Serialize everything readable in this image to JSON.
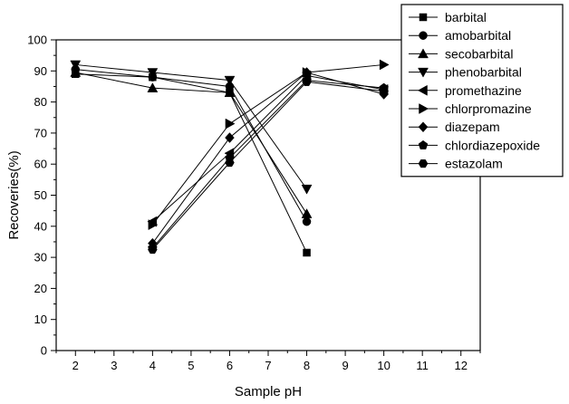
{
  "chart_data": {
    "type": "line",
    "title": "",
    "xlabel": "Sample pH",
    "ylabel": "Recoveries(%)",
    "xlim": [
      1.5,
      12.5
    ],
    "ylim": [
      0,
      100
    ],
    "xticks": [
      2,
      3,
      4,
      5,
      6,
      7,
      8,
      9,
      10,
      11,
      12
    ],
    "yticks": [
      0,
      10,
      20,
      30,
      40,
      50,
      60,
      70,
      80,
      90,
      100
    ],
    "grid": false,
    "legend_position": "top-right, outside plot",
    "series": [
      {
        "name": "barbital",
        "marker": "square",
        "x": [
          2,
          4,
          6,
          8
        ],
        "y": [
          89,
          88,
          83,
          31.5
        ]
      },
      {
        "name": "amobarbital",
        "marker": "circle",
        "x": [
          2,
          4,
          6,
          8
        ],
        "y": [
          90.5,
          88,
          85,
          41.5
        ]
      },
      {
        "name": "secobarbital",
        "marker": "triangle-up",
        "x": [
          2,
          4,
          6,
          8
        ],
        "y": [
          89.5,
          84.5,
          83,
          44
        ]
      },
      {
        "name": "phenobarbital",
        "marker": "triangle-down",
        "x": [
          2,
          4,
          6,
          8
        ],
        "y": [
          92,
          89.5,
          87,
          52
        ]
      },
      {
        "name": "promethazine",
        "marker": "triangle-left",
        "x": [
          4,
          6,
          8,
          10
        ],
        "y": [
          41.5,
          63.5,
          88.5,
          84
        ]
      },
      {
        "name": "chlorpromazine",
        "marker": "triangle-right",
        "x": [
          4,
          6,
          8,
          10
        ],
        "y": [
          40.5,
          73,
          89.5,
          92
        ]
      },
      {
        "name": "diazepam",
        "marker": "diamond",
        "x": [
          4,
          6,
          8,
          10
        ],
        "y": [
          34.5,
          68.5,
          89.5,
          82.5
        ]
      },
      {
        "name": "chlordiazepoxide",
        "marker": "pentagon",
        "x": [
          4,
          6,
          8,
          10
        ],
        "y": [
          33,
          62,
          87,
          84.5
        ]
      },
      {
        "name": "estazolam",
        "marker": "hexagon",
        "x": [
          4,
          6,
          8,
          10
        ],
        "y": [
          32.5,
          60.5,
          86.5,
          83.5
        ]
      }
    ]
  }
}
